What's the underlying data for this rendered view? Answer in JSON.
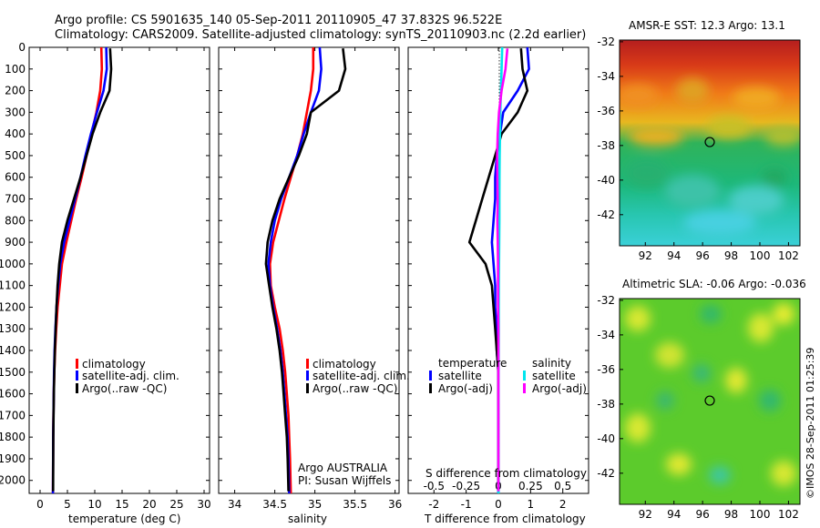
{
  "header": {
    "line1": "Argo profile: CS 5901635_140 05-Sep-2011 20110905_47 37.832S 96.522E",
    "line2": "Climatology: CARS2009. Satellite-adjusted climatology: synTS_20110903.nc (2.2d earlier)"
  },
  "credit": "©IMOS 28-Sep-2011 01:25:39",
  "colors": {
    "climatology": "#ff0000",
    "satellite": "#0000ff",
    "argo": "#000000",
    "sal_satellite": "#00e5ee",
    "sal_argo": "#ff00ff"
  },
  "chart_data": [
    {
      "type": "line",
      "xlabel": "temperature (deg C)",
      "xticks": [
        "0",
        "5",
        "10",
        "15",
        "20",
        "25",
        "30"
      ],
      "xlim": [
        -2,
        31
      ],
      "yticks": [
        "0",
        "100",
        "200",
        "300",
        "400",
        "500",
        "600",
        "700",
        "800",
        "900",
        "1000",
        "1100",
        "1200",
        "1300",
        "1400",
        "1500",
        "1600",
        "1700",
        "1800",
        "1900",
        "2000"
      ],
      "ylim": [
        0,
        2060
      ],
      "legend": [
        "climatology",
        "satellite-adj. clim.",
        "Argo(..raw -QC)"
      ],
      "series": [
        {
          "name": "climatology",
          "color": "#ff0000",
          "x": [
            11.2,
            11.3,
            11.0,
            10.3,
            9.4,
            8.5,
            7.6,
            6.6,
            5.7,
            4.8,
            4.0,
            3.6,
            3.2,
            2.95,
            2.75,
            2.6,
            2.5,
            2.45,
            2.4,
            2.38,
            2.35
          ],
          "y": [
            0,
            100,
            200,
            300,
            400,
            500,
            600,
            700,
            800,
            900,
            1000,
            1100,
            1200,
            1300,
            1400,
            1500,
            1600,
            1700,
            1800,
            1900,
            2060
          ]
        },
        {
          "name": "satellite-adj. clim.",
          "color": "#0000ff",
          "x": [
            12.1,
            12.2,
            11.6,
            10.4,
            9.3,
            8.3,
            7.4,
            6.4,
            5.4,
            4.4,
            3.7,
            3.3,
            3.0,
            2.8,
            2.65,
            2.55,
            2.5,
            2.45,
            2.4,
            2.38,
            2.35
          ],
          "y": [
            0,
            100,
            200,
            300,
            400,
            500,
            600,
            700,
            800,
            900,
            1000,
            1100,
            1200,
            1300,
            1400,
            1500,
            1600,
            1700,
            1800,
            1900,
            2060
          ]
        },
        {
          "name": "Argo(..raw -QC)",
          "color": "#000000",
          "x": [
            12.8,
            13.0,
            12.7,
            11.0,
            9.6,
            8.5,
            7.4,
            6.2,
            5.0,
            4.0,
            3.5,
            3.2,
            3.0,
            2.85,
            2.7,
            2.6,
            2.52,
            2.47,
            2.42,
            2.4,
            2.38
          ],
          "y": [
            5,
            100,
            200,
            300,
            400,
            500,
            600,
            700,
            800,
            900,
            1000,
            1100,
            1200,
            1300,
            1400,
            1500,
            1600,
            1700,
            1800,
            1900,
            2050
          ]
        }
      ]
    },
    {
      "type": "line",
      "xlabel": "salinity",
      "xticks": [
        "34",
        "34.5",
        "35",
        "35.5",
        "36"
      ],
      "xlim": [
        33.8,
        36.05
      ],
      "ylim": [
        0,
        2060
      ],
      "legend": [
        "climatology",
        "satellite-adj. clim.",
        "Argo(..raw -QC)"
      ],
      "annotations": [
        "Argo AUSTRALIA",
        "PI: Susan Wijffels"
      ],
      "series": [
        {
          "name": "climatology",
          "color": "#ff0000",
          "x": [
            34.98,
            34.98,
            34.95,
            34.9,
            34.85,
            34.78,
            34.7,
            34.62,
            34.55,
            34.48,
            34.44,
            34.45,
            34.5,
            34.56,
            34.6,
            34.63,
            34.65,
            34.67,
            34.68,
            34.69,
            34.7
          ],
          "y": [
            0,
            100,
            200,
            300,
            400,
            500,
            600,
            700,
            800,
            900,
            1000,
            1100,
            1200,
            1300,
            1400,
            1500,
            1600,
            1700,
            1800,
            1900,
            2060
          ]
        },
        {
          "name": "satellite-adj. clim.",
          "color": "#0000ff",
          "x": [
            35.06,
            35.08,
            35.05,
            34.95,
            34.86,
            34.78,
            34.68,
            34.58,
            34.5,
            34.45,
            34.42,
            34.44,
            34.48,
            34.53,
            34.57,
            34.6,
            34.62,
            34.64,
            34.66,
            34.67,
            34.68
          ],
          "y": [
            0,
            100,
            200,
            300,
            400,
            500,
            600,
            700,
            800,
            900,
            1000,
            1100,
            1200,
            1300,
            1400,
            1500,
            1600,
            1700,
            1800,
            1900,
            2060
          ]
        },
        {
          "name": "Argo(..raw -QC)",
          "color": "#000000",
          "x": [
            35.35,
            35.38,
            35.3,
            34.95,
            34.9,
            34.8,
            34.68,
            34.56,
            34.47,
            34.41,
            34.39,
            34.43,
            34.47,
            34.52,
            34.56,
            34.59,
            34.61,
            34.63,
            34.65,
            34.66,
            34.67
          ],
          "y": [
            5,
            100,
            200,
            300,
            400,
            500,
            600,
            700,
            800,
            900,
            1000,
            1100,
            1200,
            1300,
            1400,
            1500,
            1600,
            1700,
            1800,
            1900,
            2050
          ]
        }
      ]
    },
    {
      "type": "line",
      "xlabel": "T difference from climatology",
      "x2label": "S difference from climatology",
      "xticks": [
        "-2",
        "-1",
        "0",
        "1",
        "2"
      ],
      "x2ticks": [
        "-0.5",
        "-0.25",
        "0",
        "0.25",
        "0.5"
      ],
      "xlim": [
        -2.8,
        2.8
      ],
      "ylim": [
        0,
        2060
      ],
      "legend_headers": [
        "temperature",
        "salinity"
      ],
      "legend": [
        "satellite",
        "Argo(-adj)",
        "satellite",
        "Argo(-adj)"
      ],
      "series": [
        {
          "name": "satellite",
          "color": "#0000ff",
          "x": [
            0.9,
            0.95,
            0.6,
            0.15,
            0.05,
            -0.05,
            -0.1,
            -0.1,
            -0.15,
            -0.2,
            -0.15,
            -0.1,
            -0.1,
            -0.05,
            -0.05,
            0,
            0,
            0,
            0,
            0,
            0
          ],
          "y": [
            0,
            100,
            200,
            300,
            400,
            500,
            600,
            700,
            800,
            900,
            1000,
            1100,
            1200,
            1300,
            1400,
            1500,
            1600,
            1700,
            1800,
            1900,
            2060
          ]
        },
        {
          "name": "Argo(-adj)",
          "color": "#000000",
          "x": [
            0.7,
            0.75,
            0.9,
            0.6,
            0.1,
            -0.1,
            -0.3,
            -0.5,
            -0.7,
            -0.9,
            -0.4,
            -0.2,
            -0.15,
            -0.1,
            -0.05,
            0,
            0,
            0,
            0,
            0,
            0
          ],
          "y": [
            5,
            100,
            200,
            300,
            400,
            500,
            600,
            700,
            800,
            900,
            1000,
            1100,
            1200,
            1300,
            1400,
            1500,
            1600,
            1700,
            1800,
            1900,
            2050
          ]
        },
        {
          "name": "satellite",
          "color": "#00e5ee",
          "x": [
            0.12,
            0.1,
            0.08,
            0.06,
            0.05,
            0.04,
            0.035,
            0.03,
            0.03,
            0.025,
            0.02,
            0.015,
            0.01,
            0.01,
            0.008,
            0.006,
            0.005,
            0.004,
            0.003,
            0.002,
            0.002
          ],
          "y": [
            0,
            100,
            200,
            300,
            400,
            500,
            600,
            700,
            800,
            900,
            1000,
            1100,
            1200,
            1300,
            1400,
            1500,
            1600,
            1700,
            1800,
            1900,
            2060
          ]
        },
        {
          "name": "Argo(-adj)",
          "color": "#ff00ff",
          "x": [
            0.28,
            0.22,
            0.1,
            0.02,
            -0.02,
            -0.04,
            -0.03,
            -0.02,
            -0.03,
            -0.02,
            -0.01,
            -0.01,
            -0.01,
            0,
            0,
            0,
            0,
            0,
            0,
            0,
            0
          ],
          "y": [
            5,
            100,
            200,
            300,
            400,
            500,
            600,
            700,
            800,
            900,
            1000,
            1100,
            1200,
            1300,
            1400,
            1500,
            1600,
            1700,
            1800,
            1900,
            2050
          ]
        }
      ]
    },
    {
      "type": "heatmap",
      "title": "AMSR-E SST: 12.3 Argo: 13.1",
      "xticks": [
        "92",
        "94",
        "96",
        "98",
        "100",
        "102"
      ],
      "yticks": [
        "-32",
        "-34",
        "-36",
        "-38",
        "-40",
        "-42"
      ],
      "marker": {
        "lon": 96.5,
        "lat": -37.8
      }
    },
    {
      "type": "heatmap",
      "title": "Altimetric SLA: -0.06 Argo: -0.036",
      "xticks": [
        "92",
        "94",
        "96",
        "98",
        "100",
        "102"
      ],
      "yticks": [
        "-32",
        "-34",
        "-36",
        "-38",
        "-40",
        "-42"
      ],
      "marker": {
        "lon": 96.5,
        "lat": -37.8
      }
    }
  ]
}
